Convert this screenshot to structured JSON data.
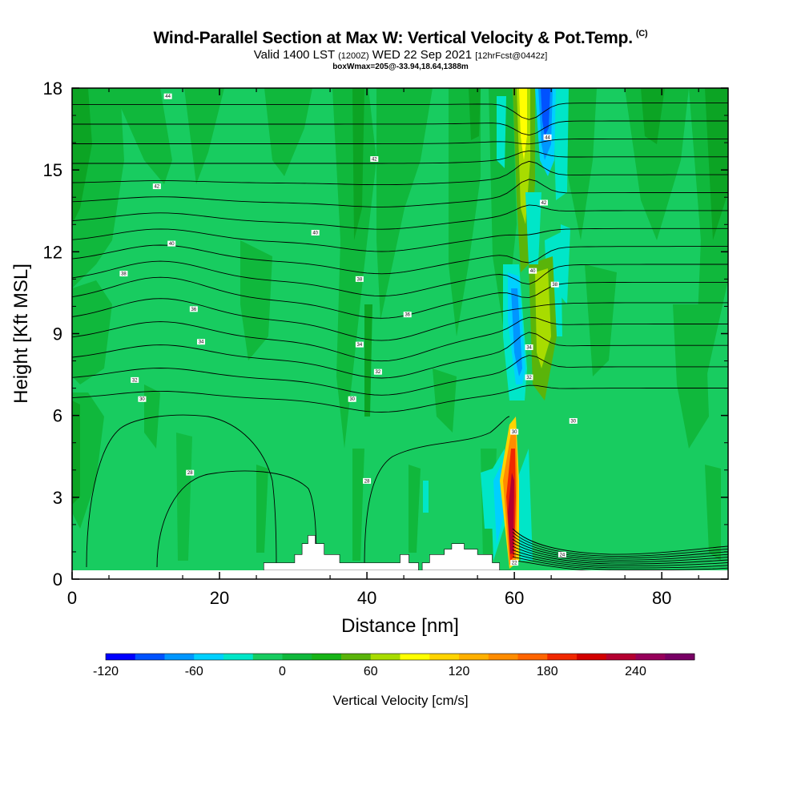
{
  "header": {
    "title": "Wind-Parallel Section at Max W: Vertical Velocity & Pot.Temp.",
    "copyright": "(C)",
    "valid_prefix": "Valid 1400 LST",
    "valid_utc": "(1200Z)",
    "valid_date": "WED 22 Sep 2021",
    "forecast": "[12hrFcst@0442z]",
    "box_info": "boxWmax=205@-33.94,18.64,1388m"
  },
  "colors": {
    "background_green": "#18CC60",
    "mid_green": "#10B83C",
    "dark_green": "#0CA424",
    "terrain": "#ffffff"
  },
  "chart_data": {
    "type": "heatmap",
    "title": "Wind-Parallel Section at Max W: Vertical Velocity & Pot.Temp.",
    "xlabel": "Distance [nm]",
    "ylabel": "Height [Kft MSL]",
    "xlim": [
      0,
      89
    ],
    "ylim": [
      0,
      18
    ],
    "xticks": [
      "0",
      "20",
      "40",
      "60",
      "80"
    ],
    "yticks": [
      "0",
      "3",
      "6",
      "9",
      "12",
      "15",
      "18"
    ],
    "colorbar": {
      "label": "Vertical Velocity [cm/s]",
      "tick_labels": [
        "-120",
        "-60",
        "0",
        "60",
        "120",
        "180",
        "240"
      ],
      "tick_values": [
        -120,
        -60,
        0,
        60,
        120,
        180,
        240
      ],
      "range": [
        -120,
        280
      ],
      "step": 20,
      "colors": [
        "#0000ff",
        "#0052ff",
        "#0096ff",
        "#00d0ff",
        "#00e6c8",
        "#18cc60",
        "#10b83c",
        "#18b418",
        "#5ab40a",
        "#a8dc00",
        "#ffff00",
        "#ffd400",
        "#ffb000",
        "#ff8c00",
        "#ff6400",
        "#f02800",
        "#d20000",
        "#b40030",
        "#96005a",
        "#780064"
      ]
    },
    "features": [
      {
        "name": "updraft core",
        "x": 60.3,
        "y_range": [
          0.5,
          5.8
        ],
        "max_w": 205
      },
      {
        "name": "downdraft column",
        "x": 61.5,
        "y_range": [
          6,
          11.5
        ],
        "min_w": -80
      },
      {
        "name": "upper updraft",
        "x": 63.5,
        "y_range": [
          12,
          18
        ],
        "max_w": 80
      },
      {
        "name": "upper downdraft",
        "x": 64.8,
        "y_range": [
          15,
          18
        ],
        "min_w": -120
      }
    ],
    "theta_contour_labels": [
      {
        "text": "44",
        "x": 13,
        "y": 17.7
      },
      {
        "text": "42",
        "x": 11.5,
        "y": 14.4
      },
      {
        "text": "40",
        "x": 13.5,
        "y": 12.3
      },
      {
        "text": "38",
        "x": 7,
        "y": 11.2
      },
      {
        "text": "36",
        "x": 16.5,
        "y": 9.9
      },
      {
        "text": "34",
        "x": 17.5,
        "y": 8.7
      },
      {
        "text": "32",
        "x": 8.5,
        "y": 7.3
      },
      {
        "text": "30",
        "x": 9.5,
        "y": 6.6
      },
      {
        "text": "28",
        "x": 16,
        "y": 3.9
      },
      {
        "text": "42",
        "x": 41,
        "y": 15.4
      },
      {
        "text": "40",
        "x": 33,
        "y": 12.7
      },
      {
        "text": "38",
        "x": 39,
        "y": 11
      },
      {
        "text": "36",
        "x": 45.5,
        "y": 9.7
      },
      {
        "text": "34",
        "x": 39,
        "y": 8.6
      },
      {
        "text": "32",
        "x": 41.5,
        "y": 7.6
      },
      {
        "text": "30",
        "x": 38,
        "y": 6.6
      },
      {
        "text": "28",
        "x": 40,
        "y": 3.6
      },
      {
        "text": "44",
        "x": 64.5,
        "y": 16.2
      },
      {
        "text": "42",
        "x": 64,
        "y": 13.8
      },
      {
        "text": "40",
        "x": 62.5,
        "y": 11.3
      },
      {
        "text": "38",
        "x": 65.5,
        "y": 10.8
      },
      {
        "text": "34",
        "x": 62,
        "y": 8.5
      },
      {
        "text": "32",
        "x": 62,
        "y": 7.4
      },
      {
        "text": "30",
        "x": 68,
        "y": 5.8
      },
      {
        "text": "30",
        "x": 60,
        "y": 5.4
      },
      {
        "text": "24",
        "x": 66.5,
        "y": 0.9
      },
      {
        "text": "22",
        "x": 60,
        "y": 0.6
      }
    ],
    "terrain_profile": {
      "x": [
        26,
        30.2,
        30.2,
        31.2,
        31.2,
        32,
        32,
        33,
        33,
        34.2,
        34.2,
        36.3,
        36.3,
        44.5,
        44.5,
        45.7,
        45.7,
        47,
        47,
        47.5,
        47.5,
        48.5,
        48.5,
        50.5,
        50.5,
        51.5,
        51.5,
        53.2,
        53.2,
        55,
        55,
        57,
        57,
        58,
        58,
        59.5
      ],
      "y": [
        0.6,
        0.6,
        0.9,
        0.9,
        1.3,
        1.3,
        1.6,
        1.6,
        1.3,
        1.3,
        0.9,
        0.9,
        0.6,
        0.6,
        0.9,
        0.9,
        0.6,
        0.6,
        0.3,
        0.3,
        0.6,
        0.6,
        0.9,
        0.9,
        1.1,
        1.1,
        1.3,
        1.3,
        1.1,
        1.1,
        0.9,
        0.9,
        0.6,
        0.6,
        0.3,
        0.3
      ]
    }
  }
}
